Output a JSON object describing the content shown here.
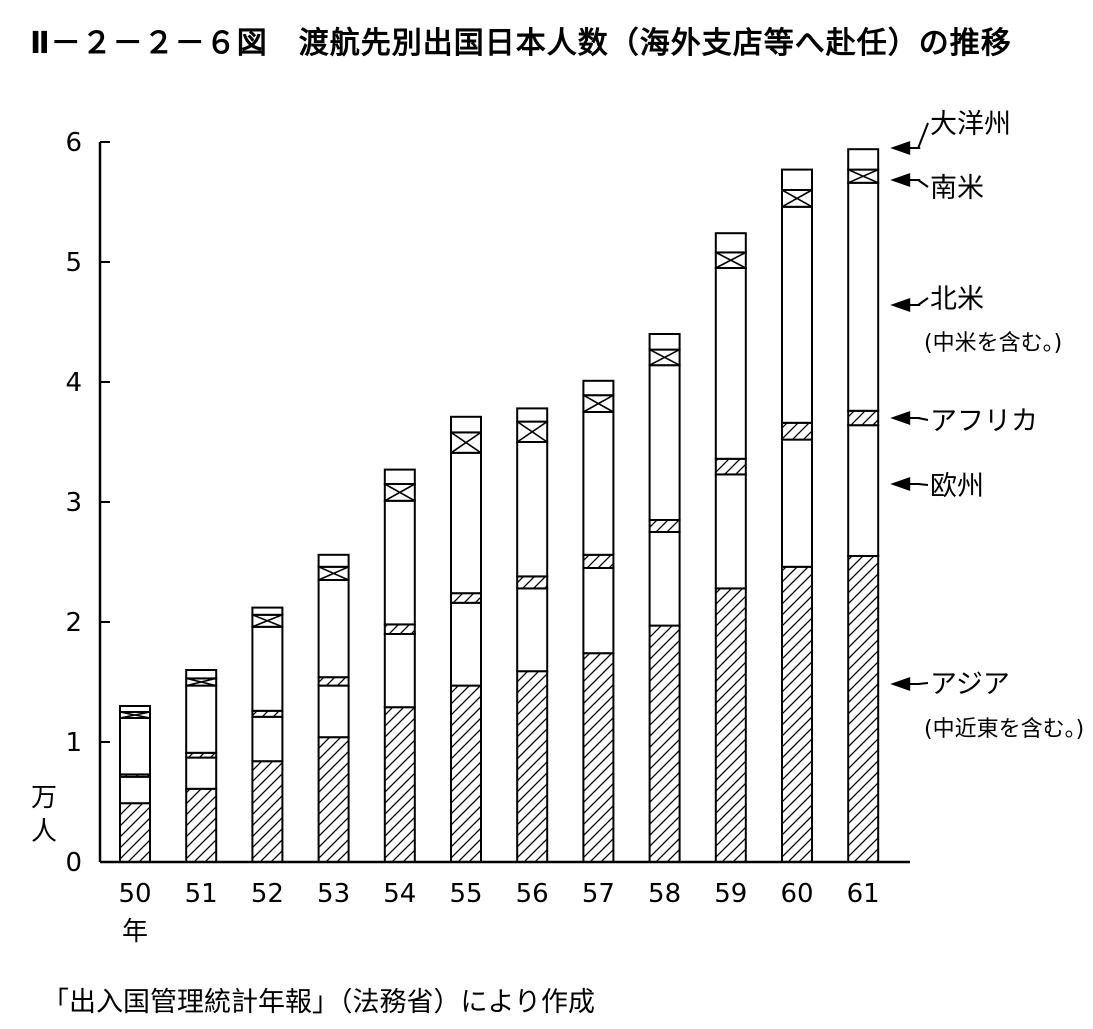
{
  "title": "Ⅱ－２－２－６図　渡航先別出国日本人数（海外支店等へ赴任）の推移",
  "source": "「出入国管理統計年報」（法務省）により作成",
  "chart_data": {
    "type": "bar",
    "stacked": true,
    "categories": [
      "50",
      "51",
      "52",
      "53",
      "54",
      "55",
      "56",
      "57",
      "58",
      "59",
      "60",
      "61"
    ],
    "category_suffix": "年",
    "ylabel": "万人",
    "ylim": [
      0,
      6
    ],
    "yticks": [
      "0",
      "1",
      "2",
      "3",
      "4",
      "5",
      "6"
    ],
    "grid": false,
    "legend_position": "right (labels with arrows pointing to last bar)",
    "series": [
      {
        "name": "アジア",
        "name_sub": "(中近東を含む。)",
        "pattern": "hatch",
        "values": [
          0.49,
          0.61,
          0.84,
          1.04,
          1.29,
          1.47,
          1.59,
          1.74,
          1.97,
          2.28,
          2.46,
          2.55
        ]
      },
      {
        "name": "欧州",
        "pattern": "white",
        "values": [
          0.22,
          0.26,
          0.37,
          0.43,
          0.61,
          0.69,
          0.69,
          0.71,
          0.78,
          0.95,
          1.06,
          1.09
        ]
      },
      {
        "name": "アフリカ",
        "pattern": "hatch",
        "values": [
          0.02,
          0.04,
          0.05,
          0.07,
          0.08,
          0.08,
          0.1,
          0.11,
          0.1,
          0.13,
          0.14,
          0.12
        ]
      },
      {
        "name": "北米",
        "name_sub": "(中米を含む。)",
        "pattern": "white",
        "values": [
          0.47,
          0.56,
          0.7,
          0.81,
          1.03,
          1.17,
          1.12,
          1.19,
          1.29,
          1.59,
          1.8,
          1.9
        ]
      },
      {
        "name": "南米",
        "pattern": "cross",
        "values": [
          0.05,
          0.06,
          0.1,
          0.11,
          0.14,
          0.17,
          0.17,
          0.14,
          0.13,
          0.13,
          0.14,
          0.11
        ]
      },
      {
        "name": "大洋州",
        "pattern": "white",
        "values": [
          0.05,
          0.07,
          0.06,
          0.1,
          0.12,
          0.13,
          0.11,
          0.12,
          0.13,
          0.16,
          0.17,
          0.17
        ]
      }
    ]
  }
}
